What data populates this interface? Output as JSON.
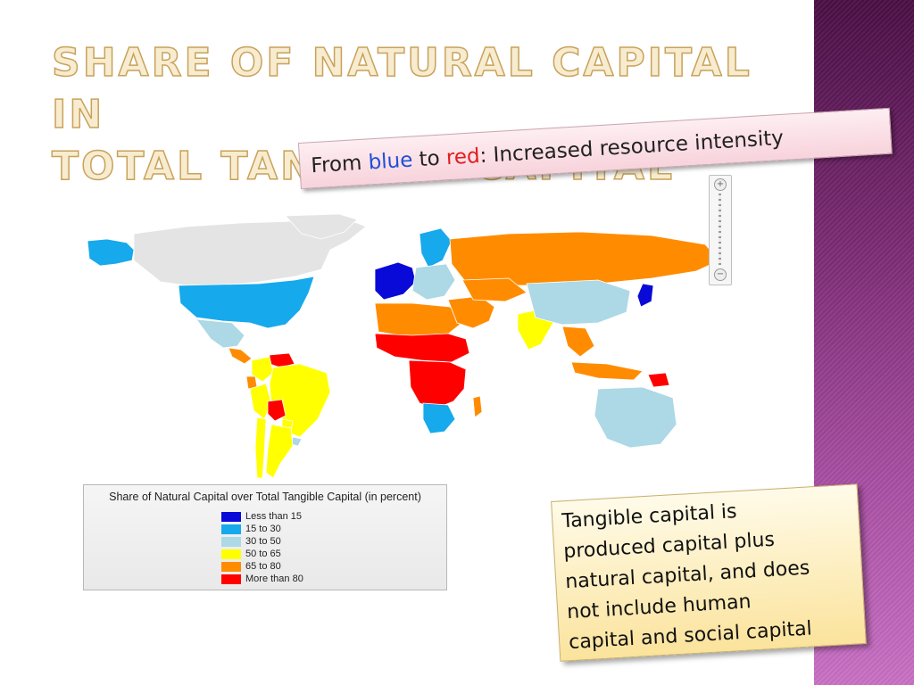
{
  "slide": {
    "title_lines": [
      "Share of Natural Capital in",
      "Total Tangible Capital"
    ],
    "subtitle": {
      "prefix": "From ",
      "blue_word": "blue",
      "middle": " to ",
      "red_word": "red",
      "suffix": ": Increased resource intensity"
    },
    "note_lines": [
      "Tangible capital is",
      "produced capital plus",
      "natural capital, and does",
      "not include human",
      "capital and social capital"
    ]
  },
  "map": {
    "legend_title": "Share of Natural Capital over Total Tangible Capital (in percent)",
    "legend": [
      {
        "label": "Less than 15",
        "color": "#0a0ad8"
      },
      {
        "label": "15 to 30",
        "color": "#16a9ec"
      },
      {
        "label": "30 to 50",
        "color": "#add8e6"
      },
      {
        "label": "50 to 65",
        "color": "#ffff00"
      },
      {
        "label": "65 to 80",
        "color": "#ff8c00"
      },
      {
        "label": "More than 80",
        "color": "#ff0000"
      }
    ],
    "nodata_color": "#e4e4e4",
    "regions": [
      {
        "name": "alaska",
        "class": "15 to 30"
      },
      {
        "name": "canada",
        "class": "no data"
      },
      {
        "name": "greenland",
        "class": "no data"
      },
      {
        "name": "usa",
        "class": "15 to 30"
      },
      {
        "name": "mexico",
        "class": "30 to 50"
      },
      {
        "name": "central-america",
        "class": "65 to 80"
      },
      {
        "name": "venezuela",
        "class": "More than 80"
      },
      {
        "name": "colombia",
        "class": "50 to 65"
      },
      {
        "name": "ecuador",
        "class": "65 to 80"
      },
      {
        "name": "peru",
        "class": "50 to 65"
      },
      {
        "name": "brazil",
        "class": "50 to 65"
      },
      {
        "name": "bolivia",
        "class": "More than 80"
      },
      {
        "name": "paraguay",
        "class": "50 to 65"
      },
      {
        "name": "uruguay",
        "class": "30 to 50"
      },
      {
        "name": "argentina",
        "class": "50 to 65"
      },
      {
        "name": "chile",
        "class": "50 to 65"
      },
      {
        "name": "western-europe",
        "class": "Less than 15"
      },
      {
        "name": "scandinavia",
        "class": "15 to 30"
      },
      {
        "name": "eastern-europe",
        "class": "30 to 50"
      },
      {
        "name": "russia",
        "class": "65 to 80"
      },
      {
        "name": "north-africa",
        "class": "65 to 80"
      },
      {
        "name": "sahel",
        "class": "More than 80"
      },
      {
        "name": "central-africa",
        "class": "More than 80"
      },
      {
        "name": "southern-africa",
        "class": "15 to 30"
      },
      {
        "name": "madagascar",
        "class": "65 to 80"
      },
      {
        "name": "middle-east",
        "class": "65 to 80"
      },
      {
        "name": "kazakhstan",
        "class": "65 to 80"
      },
      {
        "name": "india",
        "class": "50 to 65"
      },
      {
        "name": "china",
        "class": "30 to 50"
      },
      {
        "name": "japan",
        "class": "Less than 15"
      },
      {
        "name": "southeast-asia",
        "class": "65 to 80"
      },
      {
        "name": "indonesia",
        "class": "65 to 80"
      },
      {
        "name": "papua-new-guinea",
        "class": "More than 80"
      },
      {
        "name": "australia",
        "class": "30 to 50"
      }
    ]
  }
}
